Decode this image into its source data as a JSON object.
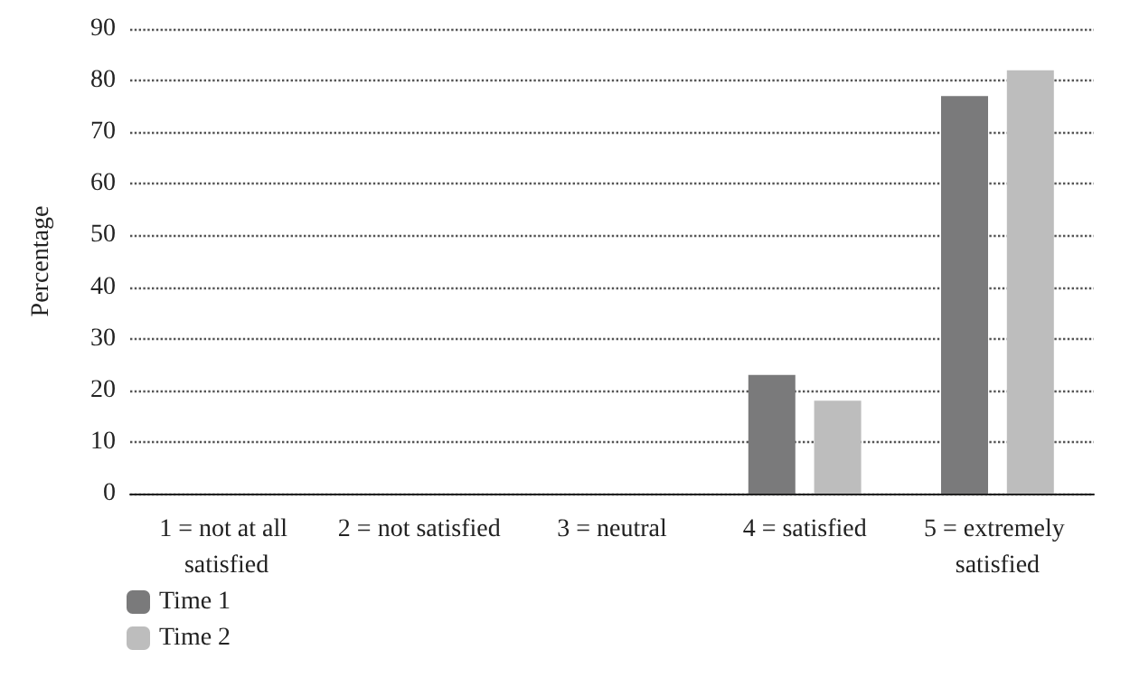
{
  "chart_data": {
    "type": "bar",
    "ylabel": "Percentage",
    "categories": [
      "1 = not at all satisfied",
      "2 = not satisfied",
      "3 = neutral",
      "4 = satisfied",
      "5 = extremely satisfied"
    ],
    "series": [
      {
        "name": "Time 1",
        "color": "#7a7a7b",
        "values": [
          0,
          0,
          0,
          23,
          77
        ]
      },
      {
        "name": "Time 2",
        "color": "#bdbdbd",
        "values": [
          0,
          0,
          0,
          18,
          82
        ]
      }
    ],
    "ylim": [
      0,
      90
    ],
    "yticks": [
      0,
      10,
      20,
      30,
      40,
      50,
      60,
      70,
      80,
      90
    ],
    "grid": "y",
    "legend": "bottom left"
  }
}
